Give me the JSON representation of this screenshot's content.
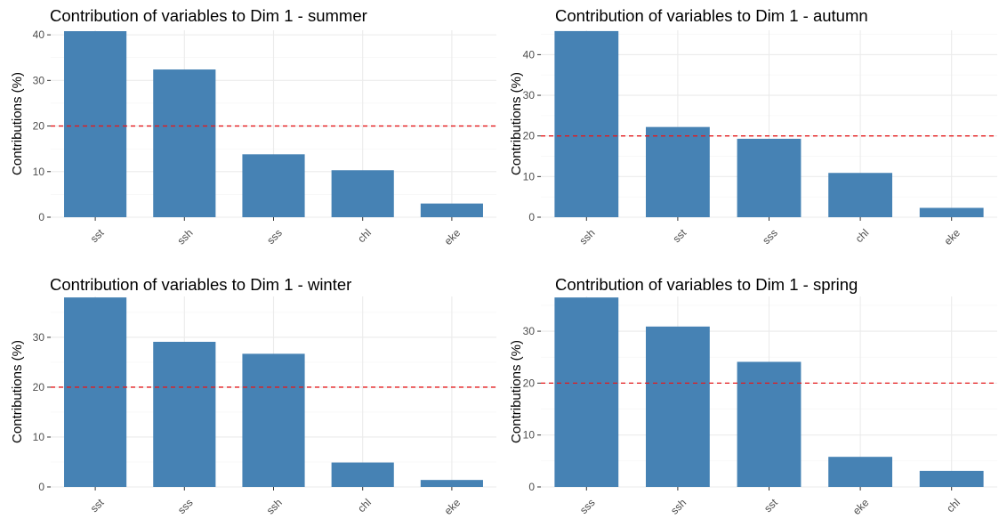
{
  "chart_data": [
    {
      "type": "bar",
      "title": "Contribution of variables to Dim 1 - summer",
      "xlabel": "",
      "ylabel": "Contributions (%)",
      "categories": [
        "sst",
        "ssh",
        "sss",
        "chl",
        "eke"
      ],
      "values": [
        40.8,
        32.4,
        13.8,
        10.3,
        3.0
      ],
      "ylim": [
        0,
        41
      ],
      "yticks": [
        0,
        10,
        20,
        30,
        40
      ],
      "reference_line": 20,
      "bar_color": "#4682B4",
      "reference_color": "#E41A1C",
      "grid": true
    },
    {
      "type": "bar",
      "title": "Contribution of variables to Dim 1 - autumn",
      "xlabel": "",
      "ylabel": "Contributions (%)",
      "categories": [
        "ssh",
        "sst",
        "sss",
        "chl",
        "eke"
      ],
      "values": [
        45.8,
        22.2,
        19.3,
        10.9,
        2.3
      ],
      "ylim": [
        0,
        46
      ],
      "yticks": [
        0,
        10,
        20,
        30,
        40
      ],
      "reference_line": 20,
      "bar_color": "#4682B4",
      "reference_color": "#E41A1C",
      "grid": true
    },
    {
      "type": "bar",
      "title": "Contribution of variables to Dim 1 - winter",
      "xlabel": "",
      "ylabel": "Contributions (%)",
      "categories": [
        "sst",
        "sss",
        "ssh",
        "chl",
        "eke"
      ],
      "values": [
        38.0,
        29.1,
        26.7,
        4.9,
        1.4
      ],
      "ylim": [
        0,
        38.2
      ],
      "yticks": [
        0,
        10,
        20,
        30
      ],
      "reference_line": 20,
      "bar_color": "#4682B4",
      "reference_color": "#E41A1C",
      "grid": true
    },
    {
      "type": "bar",
      "title": "Contribution of variables to Dim 1 - spring",
      "xlabel": "",
      "ylabel": "Contributions (%)",
      "categories": [
        "sss",
        "ssh",
        "sst",
        "eke",
        "chl"
      ],
      "values": [
        36.5,
        30.9,
        24.1,
        5.8,
        3.1
      ],
      "ylim": [
        0,
        36.7
      ],
      "yticks": [
        0,
        10,
        20,
        30
      ],
      "reference_line": 20,
      "bar_color": "#4682B4",
      "reference_color": "#E41A1C",
      "grid": true
    }
  ]
}
